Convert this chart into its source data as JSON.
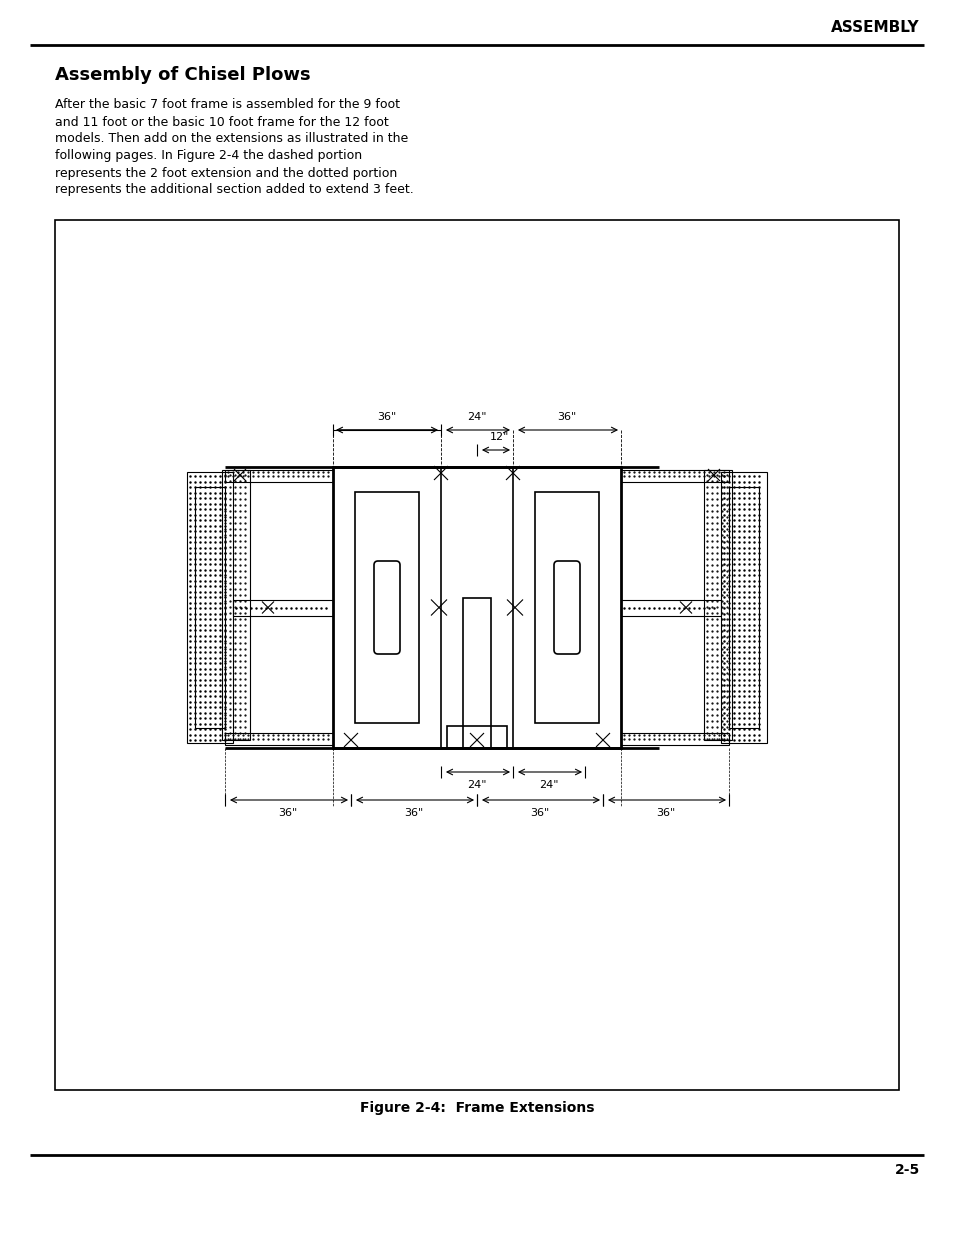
{
  "page_title": "ASSEMBLY",
  "section_title": "Assembly of Chisel Plows",
  "body_text": "After the basic 7 foot frame is assembled for the 9 foot\nand 11 foot or the basic 10 foot frame for the 12 foot\nmodels. Then add on the extensions as illustrated in the\nfollowing pages. In Figure 2-4 the dashed portion\nrepresents the 2 foot extension and the dotted portion\nrepresents the additional section added to extend 3 feet.",
  "figure_caption": "Figure 2-4:  Frame Extensions",
  "page_number": "2-5",
  "bg_color": "#ffffff",
  "text_color": "#000000",
  "dim_36_top_left": "36\"",
  "dim_24_top": "24\"",
  "dim_36_top_right": "36\"",
  "dim_12": "12\"",
  "dim_24_bottom_left": "24\"",
  "dim_24_bottom_right": "24\"",
  "dim_36_bot1": "36\"",
  "dim_36_bot2": "36\"",
  "dim_36_bot3": "36\"",
  "dim_36_bot4": "36\""
}
